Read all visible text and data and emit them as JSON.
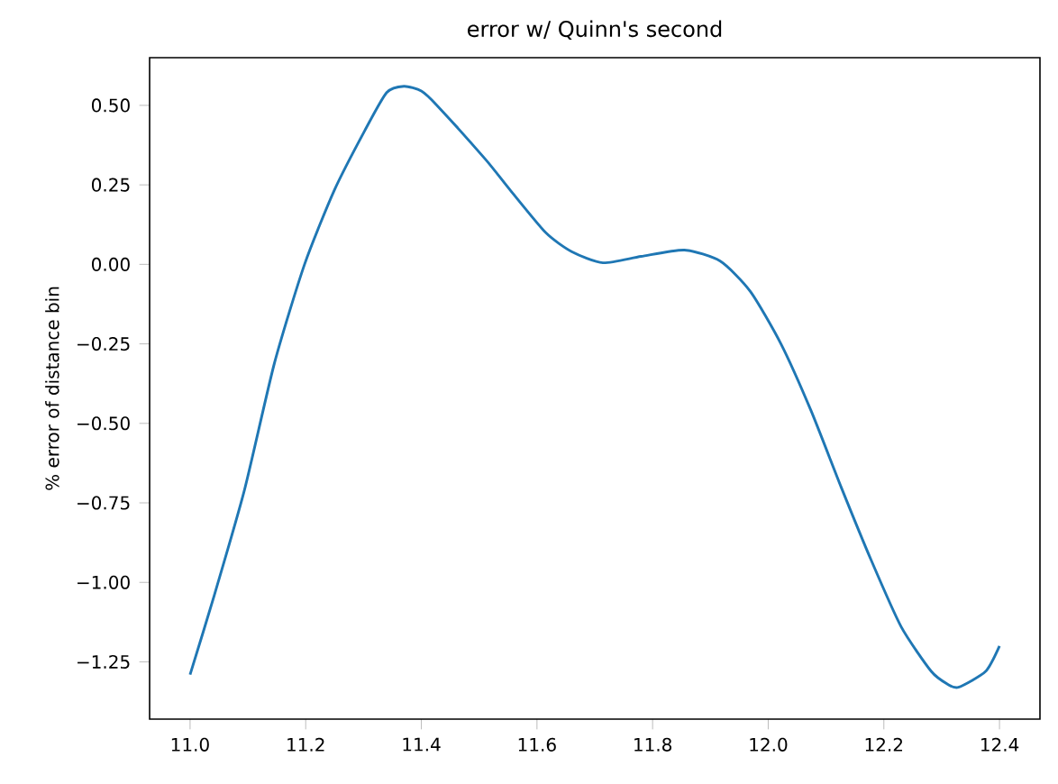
{
  "chart_data": {
    "type": "line",
    "title": "error w/ Quinn's second",
    "ylabel": "% error of distance bin",
    "color": "#1f77b4",
    "marker": "none",
    "line_style": "solid",
    "grid": false,
    "x": [
      11.0,
      11.042,
      11.094,
      11.146,
      11.198,
      11.25,
      11.302,
      11.34,
      11.37,
      11.4,
      11.427,
      11.511,
      11.553,
      11.615,
      11.66,
      11.714,
      11.78,
      11.855,
      11.917,
      11.969,
      12.022,
      12.074,
      12.126,
      12.178,
      12.23,
      12.282,
      12.31,
      12.329,
      12.376,
      12.4
    ],
    "values": [
      -1.29,
      -1.04,
      -0.71,
      -0.31,
      0.0,
      0.235,
      0.42,
      0.54,
      0.56,
      0.545,
      0.5,
      0.33,
      0.235,
      0.1,
      0.04,
      0.005,
      0.025,
      0.045,
      0.01,
      -0.085,
      -0.25,
      -0.46,
      -0.7,
      -0.93,
      -1.14,
      -1.28,
      -1.32,
      -1.33,
      -1.28,
      -1.2
    ],
    "xlim": [
      10.93,
      12.47
    ],
    "ylim": [
      -1.43,
      0.65
    ],
    "xticks": [
      {
        "value": 11.0,
        "label": "11.0"
      },
      {
        "value": 11.2,
        "label": "11.2"
      },
      {
        "value": 11.4,
        "label": "11.4"
      },
      {
        "value": 11.6,
        "label": "11.6"
      },
      {
        "value": 11.8,
        "label": "11.8"
      },
      {
        "value": 12.0,
        "label": "12.0"
      },
      {
        "value": 12.2,
        "label": "12.2"
      },
      {
        "value": 12.4,
        "label": "12.4"
      }
    ],
    "yticks": [
      {
        "value": -1.25,
        "label": "−1.25"
      },
      {
        "value": -1.0,
        "label": "−1.00"
      },
      {
        "value": -0.75,
        "label": "−0.75"
      },
      {
        "value": -0.5,
        "label": "−0.50"
      },
      {
        "value": -0.25,
        "label": "−0.25"
      },
      {
        "value": 0.0,
        "label": "0.00"
      },
      {
        "value": 0.25,
        "label": "0.25"
      },
      {
        "value": 0.5,
        "label": "0.50"
      }
    ]
  }
}
